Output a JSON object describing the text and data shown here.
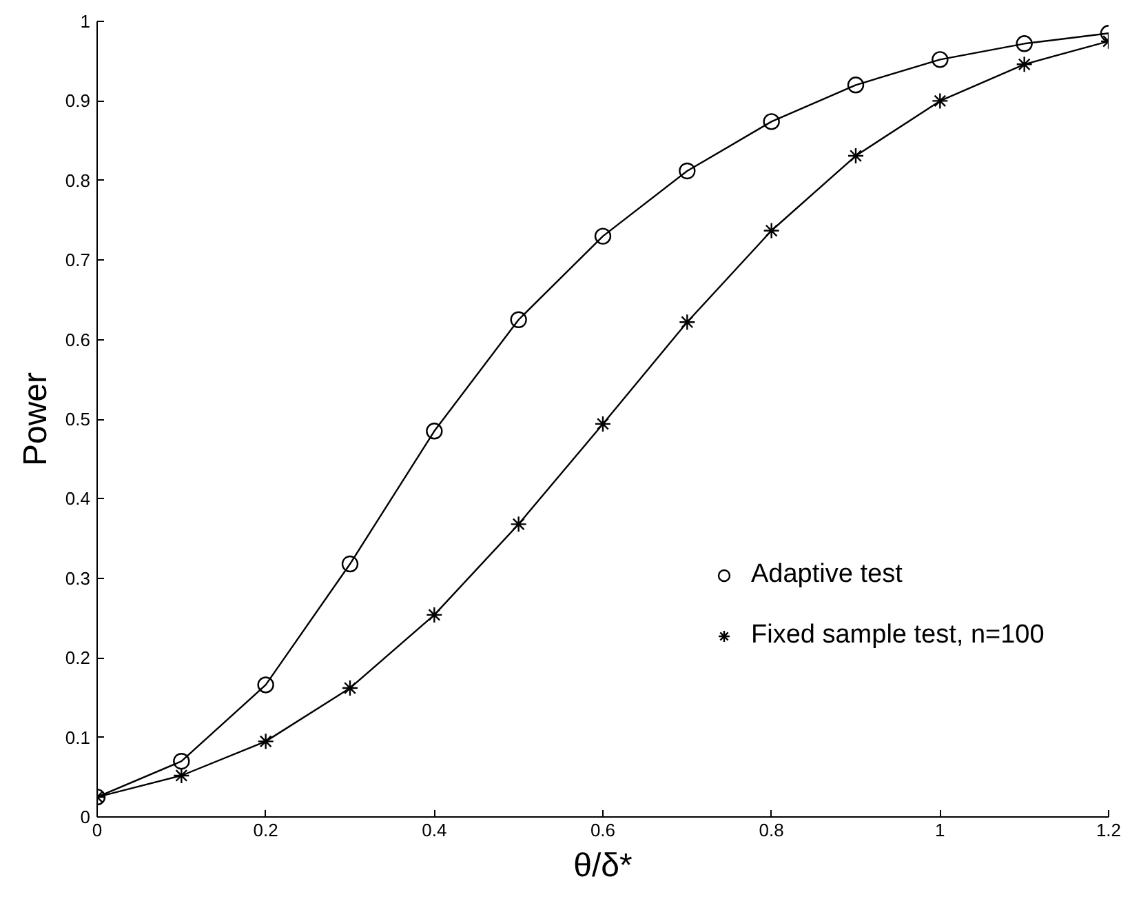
{
  "chart_data": {
    "type": "line",
    "xlabel": "θ/δ*",
    "ylabel": "Power",
    "x": [
      0,
      0.1,
      0.2,
      0.3,
      0.4,
      0.5,
      0.6,
      0.7,
      0.8,
      0.9,
      1.0,
      1.1,
      1.2
    ],
    "series": [
      {
        "name": "Adaptive test",
        "color": "#000000",
        "marker": "circle",
        "values": [
          0.025,
          0.07,
          0.166,
          0.318,
          0.485,
          0.625,
          0.73,
          0.812,
          0.874,
          0.92,
          0.952,
          0.972,
          0.985
        ]
      },
      {
        "name": "Fixed sample test, n=100",
        "color": "#000000",
        "marker": "cross",
        "values": [
          0.025,
          0.052,
          0.095,
          0.162,
          0.254,
          0.368,
          0.494,
          0.622,
          0.737,
          0.831,
          0.9,
          0.946,
          0.975
        ]
      }
    ],
    "xlim": [
      0,
      1.2
    ],
    "ylim": [
      0,
      1
    ],
    "xticks": [
      0,
      0.2,
      0.4,
      0.6,
      0.8,
      1,
      1.2
    ],
    "yticks": [
      0,
      0.1,
      0.2,
      0.3,
      0.4,
      0.5,
      0.6,
      0.7,
      0.8,
      0.9,
      1
    ],
    "grid": false,
    "legend": "bottom right",
    "line_style": "solid"
  }
}
